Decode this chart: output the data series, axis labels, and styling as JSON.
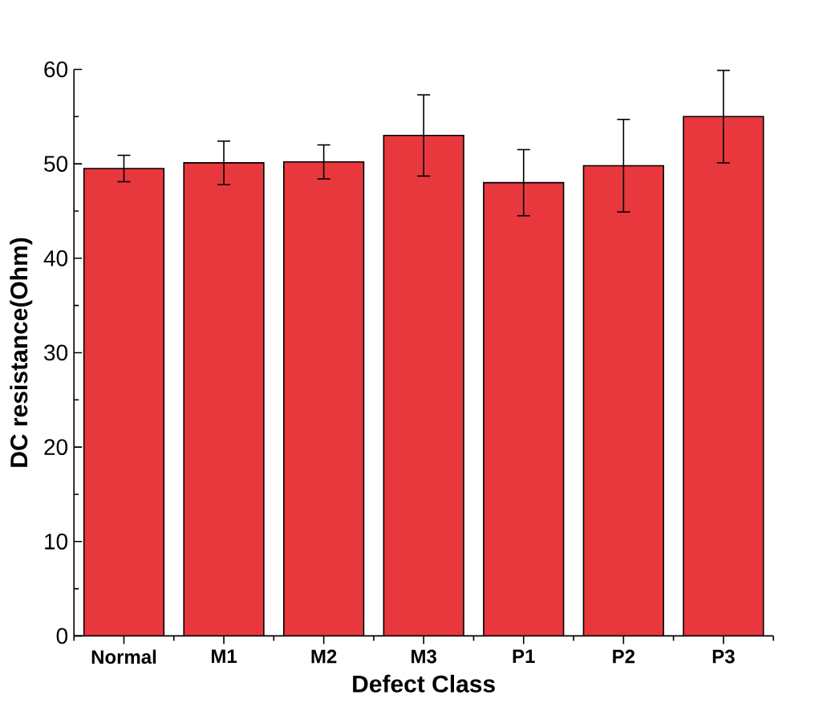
{
  "chart_data": {
    "type": "bar",
    "xlabel": "Defect Class",
    "ylabel": "DC resistance(Ohm)",
    "categories": [
      "Normal",
      "M1",
      "M2",
      "M3",
      "P1",
      "P2",
      "P3"
    ],
    "values": [
      49.5,
      50.1,
      50.2,
      53.0,
      48.0,
      49.8,
      55.0
    ],
    "errors": [
      1.4,
      2.3,
      1.8,
      4.3,
      3.5,
      4.9,
      4.9
    ],
    "color": "#e8383d",
    "ylim": [
      0,
      60
    ],
    "yticks": [
      0,
      10,
      20,
      30,
      40,
      50,
      60
    ],
    "grid": false
  }
}
